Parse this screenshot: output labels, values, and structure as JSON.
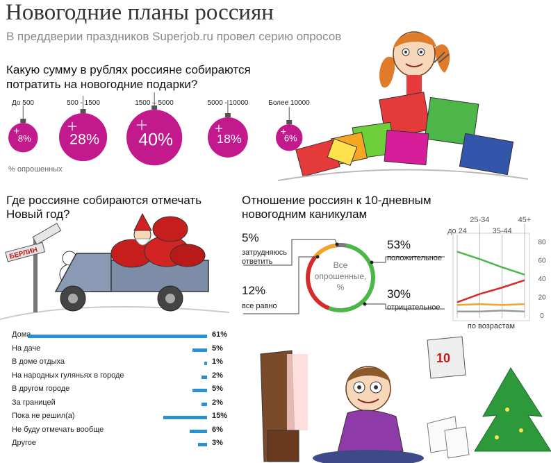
{
  "header": {
    "title": "Новогодние планы россиян",
    "subtitle": "В преддверии праздников Superjob.ru провел серию опросов"
  },
  "colors": {
    "magenta": "#c21a8c",
    "bar_blue": "#2c8fd1",
    "green": "#4cb748",
    "red": "#d62b2b",
    "orange": "#f2a42a",
    "gray": "#9a9a9a"
  },
  "gifts_section": {
    "question": "Какую сумму в рублях россияне собираются потратить на новогодние подарки?",
    "note": "% опрошенных",
    "icon": "christmas-ornament-icon"
  },
  "places_section": {
    "question": "Где россияне собираются отмечать Новый год?",
    "sign_berlin": "БЕРЛИН"
  },
  "holiday_section": {
    "question": "Отношение россиян к 10-дневным новогодним каникулам",
    "donut_center": [
      "Все",
      "опрошенные,",
      "%"
    ],
    "age_chart_title": "по возрастам"
  },
  "chart_data": [
    {
      "type": "bar",
      "name": "gifts",
      "categories": [
        "До 500",
        "500 - 1500",
        "1500 – 5000",
        "5000 - 10000",
        "Более 10000"
      ],
      "values": [
        8,
        28,
        40,
        18,
        6
      ],
      "labels": [
        "8%",
        "28%",
        "40%",
        "18%",
        "6%"
      ],
      "unit": "% опрошенных"
    },
    {
      "type": "bar",
      "name": "places",
      "categories": [
        "Дома",
        "На даче",
        "В доме отдыха",
        "На народных гуляньях в городе",
        "В другом городе",
        "За границей",
        "Пока не решил(а)",
        "Не буду отмечать вообще",
        "Другое"
      ],
      "values": [
        61,
        5,
        1,
        2,
        5,
        2,
        15,
        6,
        3
      ],
      "labels": [
        "61%",
        "5%",
        "1%",
        "2%",
        "5%",
        "2%",
        "15%",
        "6%",
        "3%"
      ]
    },
    {
      "type": "pie",
      "name": "attitude",
      "slices": [
        {
          "label": "положительное",
          "value": 53,
          "text": "53%",
          "color": "#4cb748"
        },
        {
          "label": "отрицательное",
          "value": 30,
          "text": "30%",
          "color": "#d62b2b"
        },
        {
          "label": "все равно",
          "value": 12,
          "text": "12%",
          "color": "#f2a42a"
        },
        {
          "label": "затрудняюсь ответить",
          "value": 5,
          "text": "5%",
          "color": "#7a7a7a"
        }
      ]
    },
    {
      "type": "line",
      "name": "attitude_by_age",
      "title": "по возрастам",
      "x": [
        "до 24",
        "25-34",
        "35-44",
        "45+"
      ],
      "ylim": [
        0,
        80
      ],
      "yticks": [
        "0",
        "20",
        "40",
        "60",
        "80"
      ],
      "series": [
        {
          "color": "#4cb748",
          "values": [
            69,
            61,
            52,
            44
          ]
        },
        {
          "color": "#d62b2b",
          "values": [
            14,
            23,
            30,
            38
          ]
        },
        {
          "color": "#f2a42a",
          "values": [
            11,
            12,
            11,
            12
          ]
        },
        {
          "color": "#9a9a9a",
          "values": [
            4,
            4,
            5,
            4
          ]
        }
      ]
    }
  ]
}
